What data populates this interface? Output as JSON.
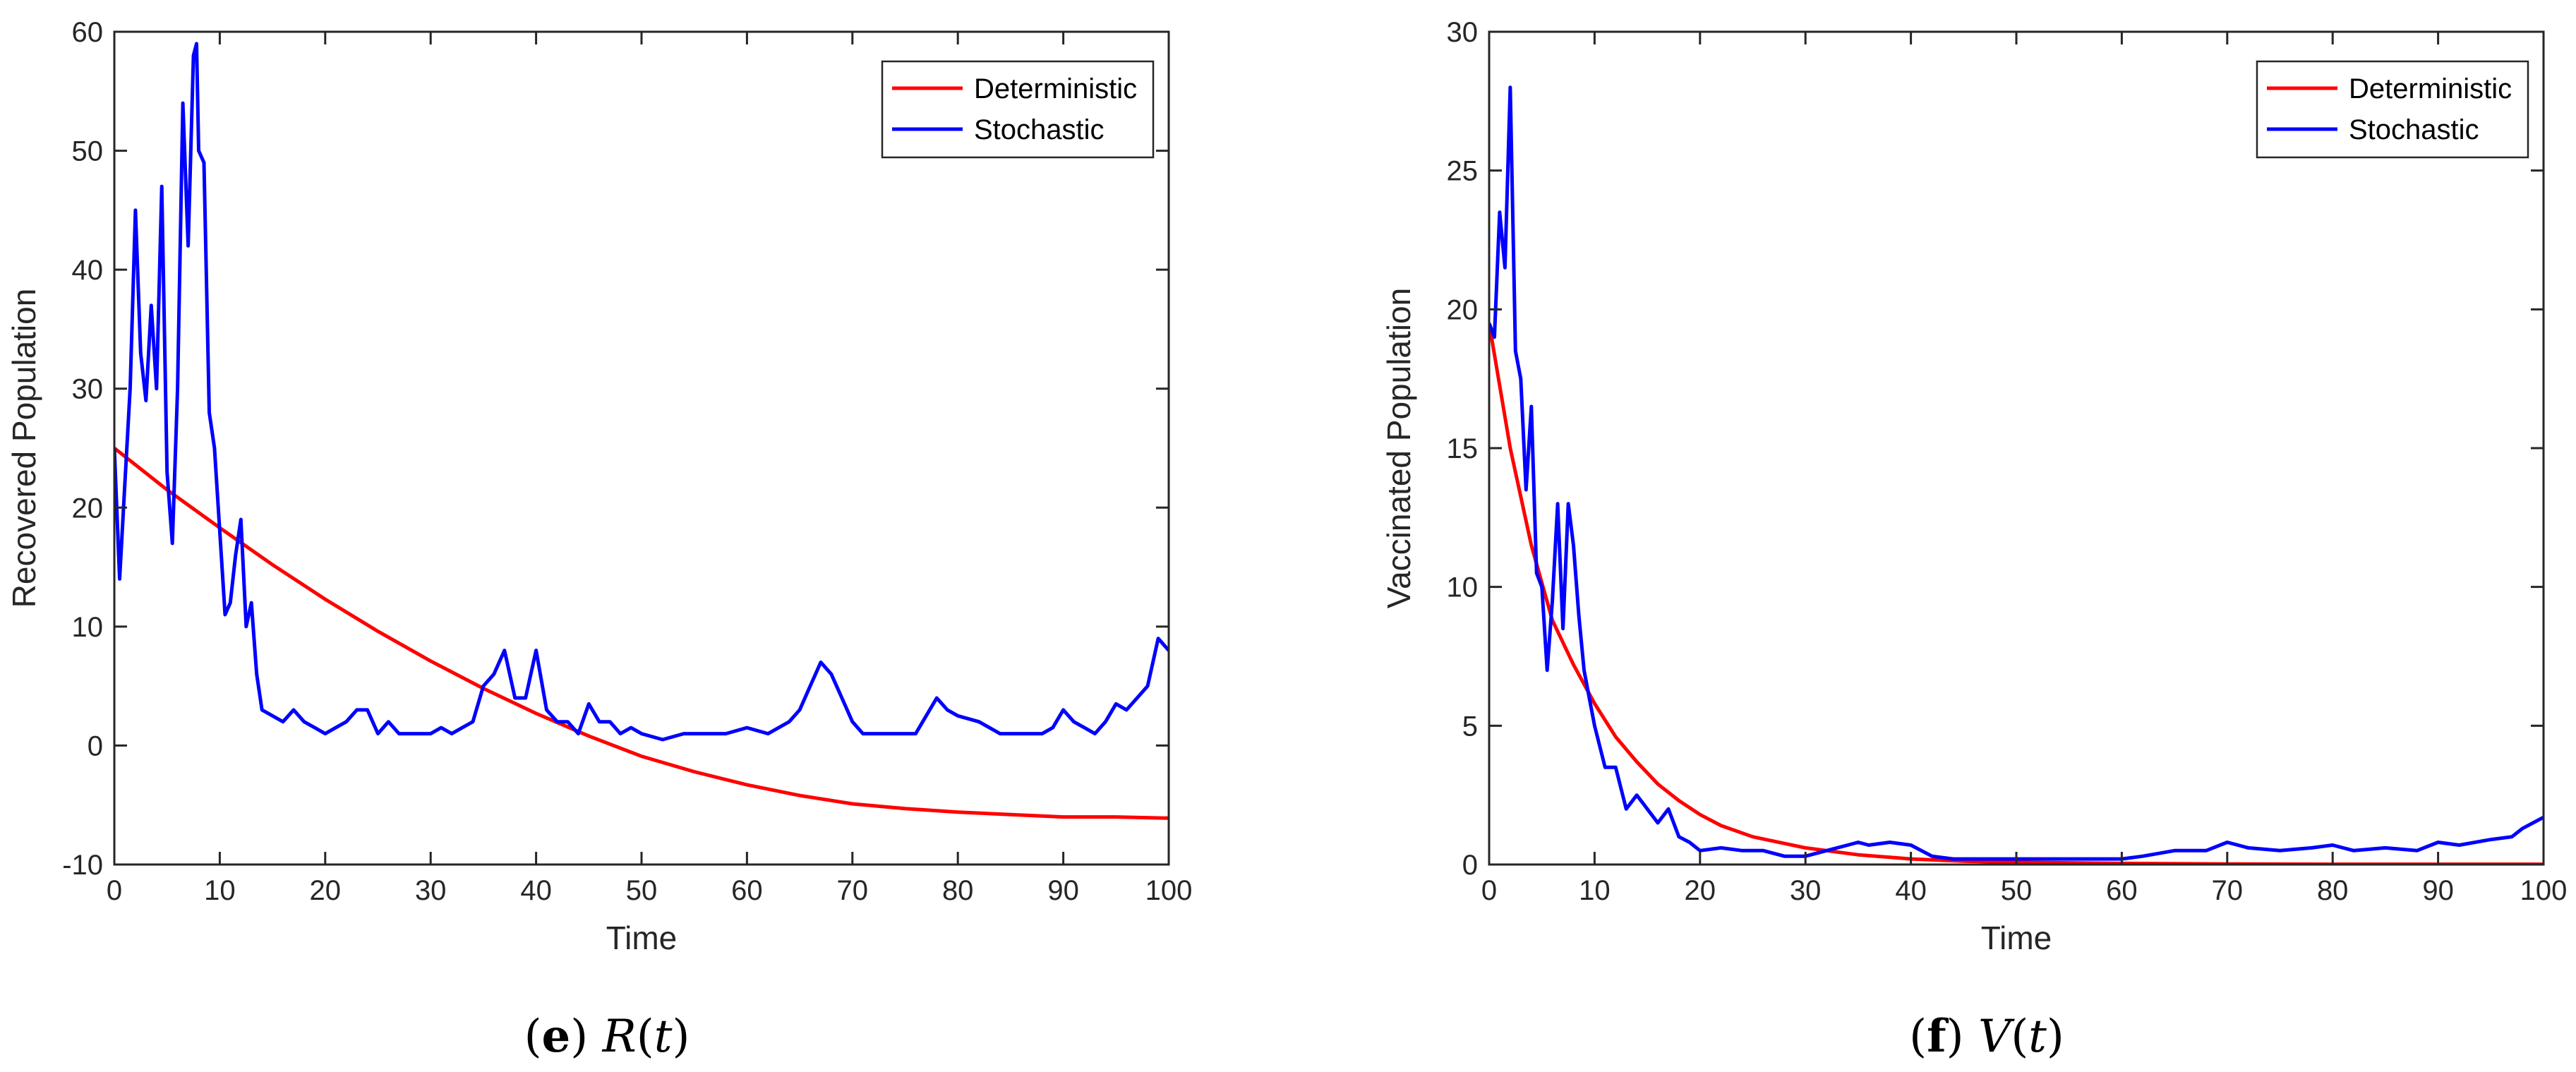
{
  "chart_data": [
    {
      "type": "line",
      "panel": "e",
      "caption_letter": "e",
      "caption_var": "R",
      "caption_arg": "t",
      "xlabel": "Time",
      "ylabel": "Recovered Population",
      "xlim": [
        0,
        100
      ],
      "ylim": [
        -10,
        60
      ],
      "xticks": [
        0,
        10,
        20,
        30,
        40,
        50,
        60,
        70,
        80,
        90,
        100
      ],
      "yticks": [
        -10,
        0,
        10,
        20,
        30,
        40,
        50,
        60
      ],
      "legend_position": "top-right",
      "series": [
        {
          "name": "Deterministic",
          "color": "#ff0000",
          "x": [
            0,
            5,
            10,
            15,
            20,
            25,
            30,
            35,
            40,
            45,
            50,
            55,
            60,
            65,
            70,
            75,
            80,
            85,
            90,
            95,
            100
          ],
          "y": [
            25,
            21.5,
            18.3,
            15.2,
            12.3,
            9.6,
            7.1,
            4.8,
            2.7,
            0.8,
            -0.9,
            -2.2,
            -3.3,
            -4.2,
            -4.9,
            -5.3,
            -5.6,
            -5.8,
            -6.0,
            -6.0,
            -6.1
          ]
        },
        {
          "name": "Stochastic",
          "color": "#0000ff",
          "x": [
            0,
            0.5,
            1,
            1.5,
            2,
            2.5,
            3,
            3.5,
            4,
            4.5,
            5,
            5.5,
            6,
            6.5,
            7,
            7.5,
            7.8,
            8,
            8.5,
            9,
            9.5,
            10,
            10.5,
            11,
            11.5,
            12,
            12.5,
            13,
            13.5,
            14,
            15,
            16,
            17,
            18,
            19,
            20,
            21,
            22,
            23,
            24,
            25,
            26,
            27,
            28,
            29,
            30,
            31,
            32,
            33,
            34,
            35,
            36,
            37,
            38,
            39,
            40,
            41,
            42,
            43,
            44,
            45,
            46,
            47,
            48,
            49,
            50,
            52,
            54,
            56,
            58,
            60,
            62,
            64,
            65,
            66,
            67,
            68,
            69,
            70,
            71,
            72,
            74,
            76,
            78,
            79,
            80,
            82,
            84,
            86,
            88,
            89,
            90,
            91,
            92,
            93,
            94,
            95,
            96,
            97,
            98,
            99,
            100
          ],
          "y": [
            25,
            14,
            22,
            30,
            45,
            33,
            29,
            37,
            30,
            47,
            23,
            17,
            30,
            54,
            42,
            58,
            59,
            50,
            49,
            28,
            25,
            18,
            11,
            12,
            16,
            19,
            10,
            12,
            6,
            3,
            2.5,
            2,
            3,
            2,
            1.5,
            1,
            1.5,
            2,
            3,
            3,
            1,
            2,
            1,
            1,
            1,
            1,
            1.5,
            1,
            1.5,
            2,
            5,
            6,
            8,
            4,
            4,
            8,
            3,
            2,
            2,
            1,
            3.5,
            2,
            2,
            1,
            1.5,
            1,
            0.5,
            1,
            1,
            1,
            1.5,
            1,
            2,
            3,
            5,
            7,
            6,
            4,
            2,
            1,
            1,
            1,
            1,
            4,
            3,
            2.5,
            2,
            1,
            1,
            1,
            1.5,
            3,
            2,
            1.5,
            1,
            2,
            3.5,
            3,
            4,
            5,
            9,
            8
          ]
        }
      ]
    },
    {
      "type": "line",
      "panel": "f",
      "caption_letter": "f",
      "caption_var": "V",
      "caption_arg": "t",
      "xlabel": "Time",
      "ylabel": "Vaccinated Population",
      "xlim": [
        0,
        100
      ],
      "ylim": [
        0,
        30
      ],
      "xticks": [
        0,
        10,
        20,
        30,
        40,
        50,
        60,
        70,
        80,
        90,
        100
      ],
      "yticks": [
        0,
        5,
        10,
        15,
        20,
        25,
        30
      ],
      "legend_position": "top-right",
      "series": [
        {
          "name": "Deterministic",
          "color": "#ff0000",
          "x": [
            0,
            2,
            4,
            6,
            8,
            10,
            12,
            14,
            16,
            18,
            20,
            22,
            25,
            30,
            35,
            40,
            45,
            50,
            60,
            70,
            80,
            90,
            100
          ],
          "y": [
            19.5,
            15.0,
            11.5,
            8.8,
            7.2,
            5.8,
            4.6,
            3.7,
            2.9,
            2.3,
            1.8,
            1.4,
            1.0,
            0.6,
            0.35,
            0.2,
            0.12,
            0.08,
            0.04,
            0.02,
            0.01,
            0.01,
            0.01
          ]
        },
        {
          "name": "Stochastic",
          "color": "#0000ff",
          "x": [
            0,
            0.5,
            1,
            1.5,
            2,
            2.5,
            3,
            3.5,
            4,
            4.5,
            5,
            5.5,
            6,
            6.5,
            7,
            7.5,
            8,
            8.5,
            9,
            9.5,
            10,
            11,
            12,
            13,
            14,
            15,
            16,
            17,
            18,
            19,
            20,
            22,
            24,
            26,
            28,
            30,
            32,
            34,
            35,
            36,
            38,
            40,
            42,
            44,
            46,
            48,
            50,
            55,
            60,
            62,
            65,
            68,
            70,
            72,
            75,
            78,
            80,
            82,
            85,
            88,
            90,
            92,
            95,
            97,
            98,
            99,
            100
          ],
          "y": [
            19.5,
            19.0,
            23.5,
            21.5,
            28.0,
            18.5,
            17.5,
            13.5,
            16.5,
            10.5,
            10.0,
            7.0,
            9.5,
            13.0,
            8.5,
            13.0,
            11.5,
            9.0,
            7.0,
            6.0,
            5.0,
            3.5,
            3.5,
            2.0,
            2.5,
            2.0,
            1.5,
            2.0,
            1.0,
            0.8,
            0.5,
            0.6,
            0.5,
            0.5,
            0.3,
            0.3,
            0.5,
            0.7,
            0.8,
            0.7,
            0.8,
            0.7,
            0.3,
            0.2,
            0.2,
            0.2,
            0.2,
            0.2,
            0.2,
            0.3,
            0.5,
            0.5,
            0.8,
            0.6,
            0.5,
            0.6,
            0.7,
            0.5,
            0.6,
            0.5,
            0.8,
            0.7,
            0.9,
            1.0,
            1.3,
            1.5,
            1.7
          ]
        }
      ]
    }
  ]
}
